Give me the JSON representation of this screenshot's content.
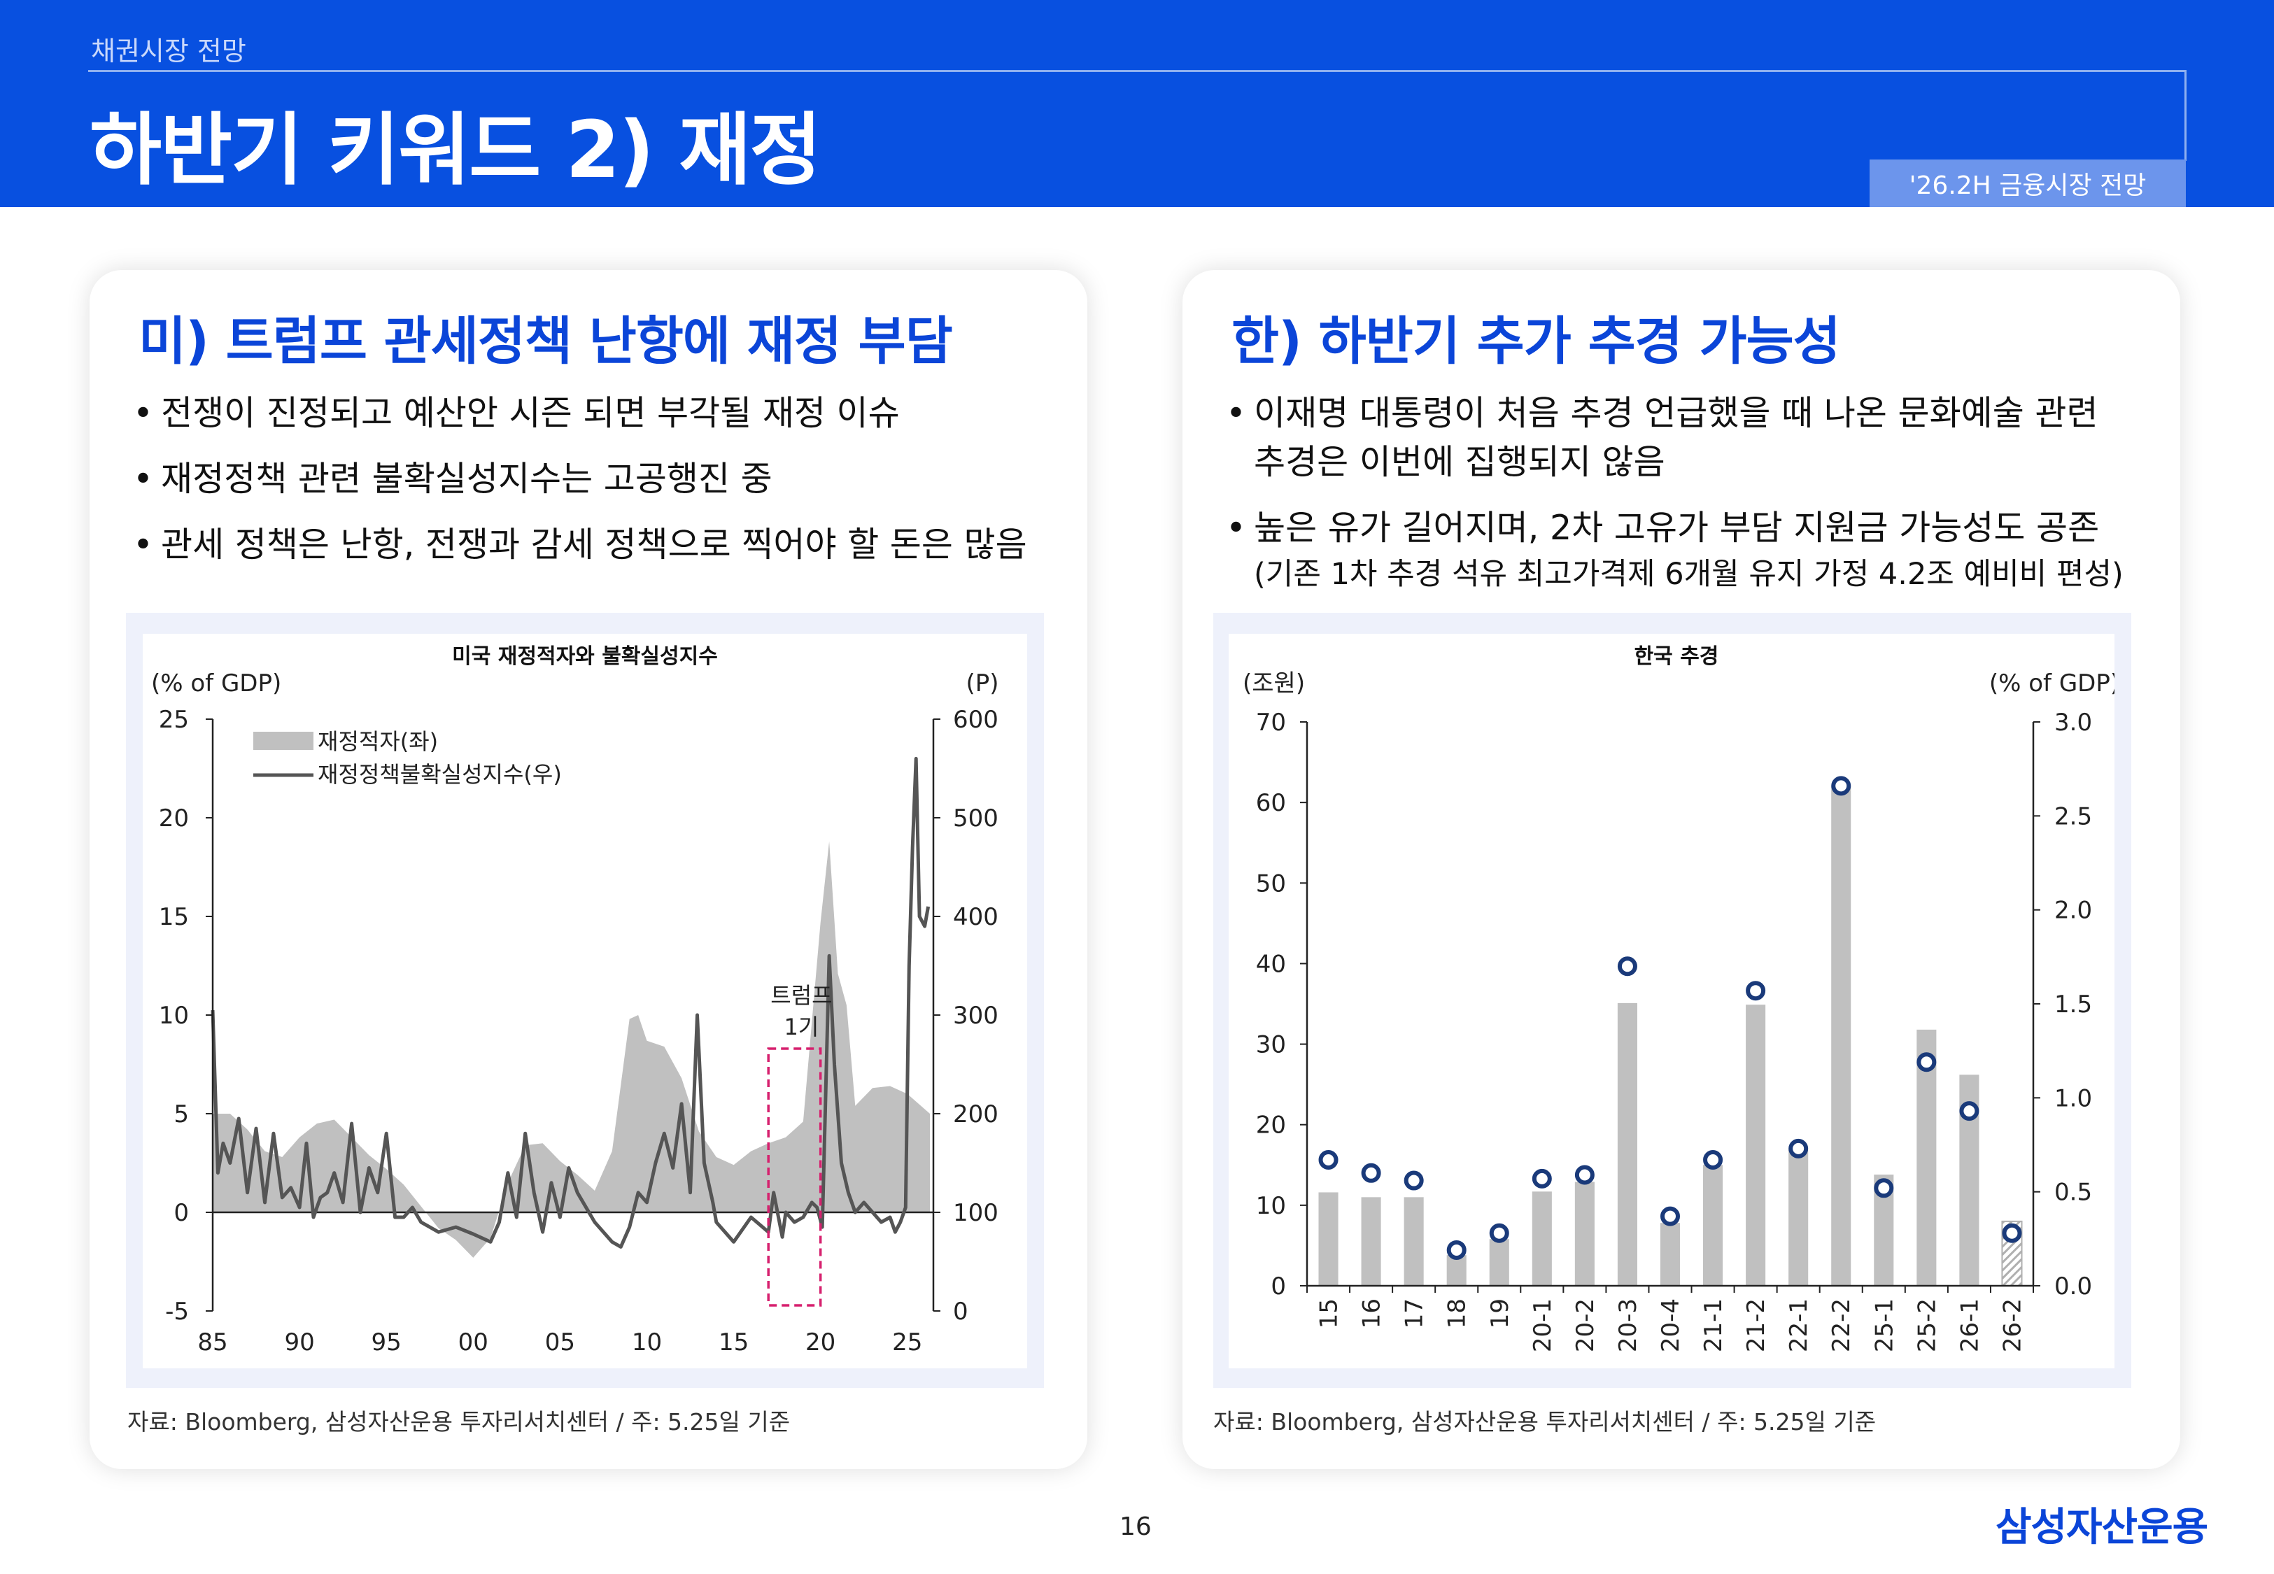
{
  "header": {
    "subtitle": "채권시장 전망",
    "title": "하반기 키워드 2) 재정",
    "tag": "'26.2H 금융시장 전망"
  },
  "left": {
    "title": "미) 트럼프 관세정책 난항에 재정 부담",
    "bullets": [
      "전쟁이 진정되고 예산안 시즌 되면 부각될 재정 이슈",
      "재정정책 관련 불확실성지수는 고공행진 중",
      "관세 정책은 난항, 전쟁과 감세 정책으로 찍어야 할 돈은 많음"
    ],
    "source": "자료: Bloomberg, 삼성자산운용 투자리서치센터 / 주: 5.25일 기준"
  },
  "right": {
    "title": "한) 하반기 추가 추경 가능성",
    "bullets": [
      {
        "lines": [
          "이재명 대통령이 처음 추경 언급했을 때 나온 문화예술 관련",
          "추경은 이번에 집행되지 않음"
        ]
      },
      {
        "lines": [
          "높은 유가 길어지며, 2차 고유가 부담 지원금 가능성도 공존"
        ],
        "note": "(기존 1차 추경 석유 최고가격제 6개월 유지 가정 4.2조 예비비 편성)"
      }
    ],
    "source": "자료: Bloomberg, 삼성자산운용 투자리서치센터 / 주: 5.25일 기준"
  },
  "footer": {
    "page": "16",
    "brand": "삼성자산운용"
  },
  "colors": {
    "blue": "#0850e0",
    "accent": "#0b45d8",
    "bar": "#c0c0c0",
    "line": "#555555",
    "marker": "#1a3a7a",
    "highlight": "#d6206e"
  },
  "chart_data": [
    {
      "type": "area",
      "title": "미국 재정적자와 불확실성지수",
      "y_left_label": "(% of GDP)",
      "y_right_label": "(P)",
      "x_ticks": [
        "85",
        "90",
        "95",
        "00",
        "05",
        "10",
        "15",
        "20",
        "25"
      ],
      "y_left_ticks": [
        "25",
        "20",
        "15",
        "10",
        "5",
        "0",
        "-5"
      ],
      "y_right_ticks": [
        "600",
        "500",
        "400",
        "300",
        "200",
        "100",
        "0"
      ],
      "ylim_left": [
        -5,
        25
      ],
      "ylim_right": [
        0,
        600
      ],
      "xlim": [
        1985,
        2026.5
      ],
      "legend": [
        "재정적자(좌)",
        "재정정책불확실성지수(우)"
      ],
      "legend_position": "top-left",
      "annotation": {
        "label": "트럼프 1기",
        "x_start": 2017.0,
        "x_end": 2020.0
      },
      "series": [
        {
          "name": "재정적자(좌)",
          "x": [
            1985,
            1986,
            1987,
            1988,
            1989,
            1990,
            1991,
            1992,
            1993,
            1994,
            1995,
            1996,
            1997,
            1998,
            1999,
            2000,
            2001,
            2002,
            2003,
            2004,
            2005,
            2006,
            2007,
            2008,
            2009,
            2009.5,
            2010,
            2011,
            2012,
            2013,
            2014,
            2015,
            2016,
            2017,
            2018,
            2019,
            2020,
            2020.5,
            2021,
            2021.5,
            2022,
            2023,
            2024,
            2025,
            2026.3
          ],
          "values": [
            5.0,
            5.0,
            4.2,
            3.1,
            2.8,
            3.8,
            4.5,
            4.7,
            3.8,
            2.9,
            2.2,
            1.4,
            0.3,
            -0.8,
            -1.4,
            -2.3,
            -1.3,
            1.5,
            3.4,
            3.5,
            2.6,
            1.9,
            1.1,
            3.1,
            9.8,
            10.0,
            8.7,
            8.4,
            6.8,
            4.1,
            2.8,
            2.4,
            3.1,
            3.5,
            3.8,
            4.6,
            14.7,
            18.8,
            12.1,
            10.5,
            5.4,
            6.3,
            6.4,
            6.0,
            5.0
          ]
        },
        {
          "name": "재정정책불확실성지수(우)",
          "x": [
            1985,
            1985.3,
            1985.6,
            1986,
            1986.5,
            1987,
            1987.5,
            1988,
            1988.5,
            1989,
            1989.5,
            1990,
            1990.4,
            1990.8,
            1991.2,
            1991.6,
            1992,
            1992.5,
            1993,
            1993.5,
            1994,
            1994.5,
            1995,
            1995.5,
            1996,
            1996.5,
            1997,
            1997.5,
            1998,
            1999,
            2000,
            2001,
            2001.5,
            2002,
            2002.5,
            2003,
            2003.5,
            2004,
            2004.5,
            2005,
            2005.5,
            2006,
            2007,
            2008,
            2008.5,
            2009,
            2009.5,
            2010,
            2010.5,
            2011,
            2011.5,
            2012,
            2012.5,
            2012.9,
            2013.3,
            2013.8,
            2014,
            2015,
            2016,
            2017,
            2017.3,
            2017.8,
            2018,
            2018.5,
            2019,
            2019.5,
            2019.8,
            2020.1,
            2020.5,
            2020.8,
            2021.2,
            2021.6,
            2022,
            2022.5,
            2023,
            2023.5,
            2024,
            2024.3,
            2024.6,
            2024.9,
            2025.1,
            2025.3,
            2025.5,
            2025.7,
            2026.0,
            2026.2
          ],
          "values": [
            305,
            140,
            170,
            150,
            195,
            120,
            185,
            110,
            180,
            115,
            125,
            105,
            170,
            95,
            115,
            120,
            140,
            110,
            190,
            100,
            145,
            120,
            180,
            95,
            95,
            105,
            90,
            85,
            80,
            85,
            78,
            70,
            90,
            140,
            95,
            180,
            120,
            80,
            130,
            95,
            145,
            120,
            90,
            70,
            65,
            85,
            120,
            110,
            150,
            180,
            145,
            210,
            120,
            300,
            150,
            110,
            90,
            70,
            95,
            80,
            120,
            75,
            100,
            90,
            95,
            110,
            105,
            85,
            360,
            250,
            150,
            120,
            100,
            110,
            100,
            90,
            95,
            80,
            90,
            105,
            350,
            470,
            560,
            400,
            390,
            410
          ]
        }
      ]
    },
    {
      "type": "bar",
      "title": "한국 추경",
      "y_left_label": "(조원)",
      "y_right_label": "(% of GDP)",
      "y_left_ticks": [
        "70",
        "60",
        "50",
        "40",
        "30",
        "20",
        "10",
        "0"
      ],
      "y_right_ticks": [
        "3.0",
        "2.5",
        "2.0",
        "1.5",
        "1.0",
        "0.5",
        "0.0"
      ],
      "ylim_left": [
        0,
        70
      ],
      "ylim_right": [
        0,
        3.0
      ],
      "categories": [
        "15",
        "16",
        "17",
        "18",
        "19",
        "20-1",
        "20-2",
        "20-3",
        "20-4",
        "21-1",
        "21-2",
        "22-1",
        "22-2",
        "25-1",
        "25-2",
        "26-1",
        "26-2"
      ],
      "series": [
        {
          "name": "bar",
          "axis": "left",
          "values": [
            11.6,
            11.0,
            11.0,
            3.8,
            5.8,
            11.7,
            12.9,
            35.1,
            7.8,
            15.0,
            34.9,
            16.9,
            62.0,
            13.8,
            31.8,
            26.2,
            8.0
          ]
        },
        {
          "name": "marker",
          "axis": "right",
          "values": [
            0.67,
            0.6,
            0.56,
            0.19,
            0.28,
            0.57,
            0.59,
            1.7,
            0.37,
            0.67,
            1.57,
            0.73,
            2.66,
            0.52,
            1.19,
            0.93,
            0.28
          ]
        }
      ],
      "hatched_last": true
    }
  ]
}
